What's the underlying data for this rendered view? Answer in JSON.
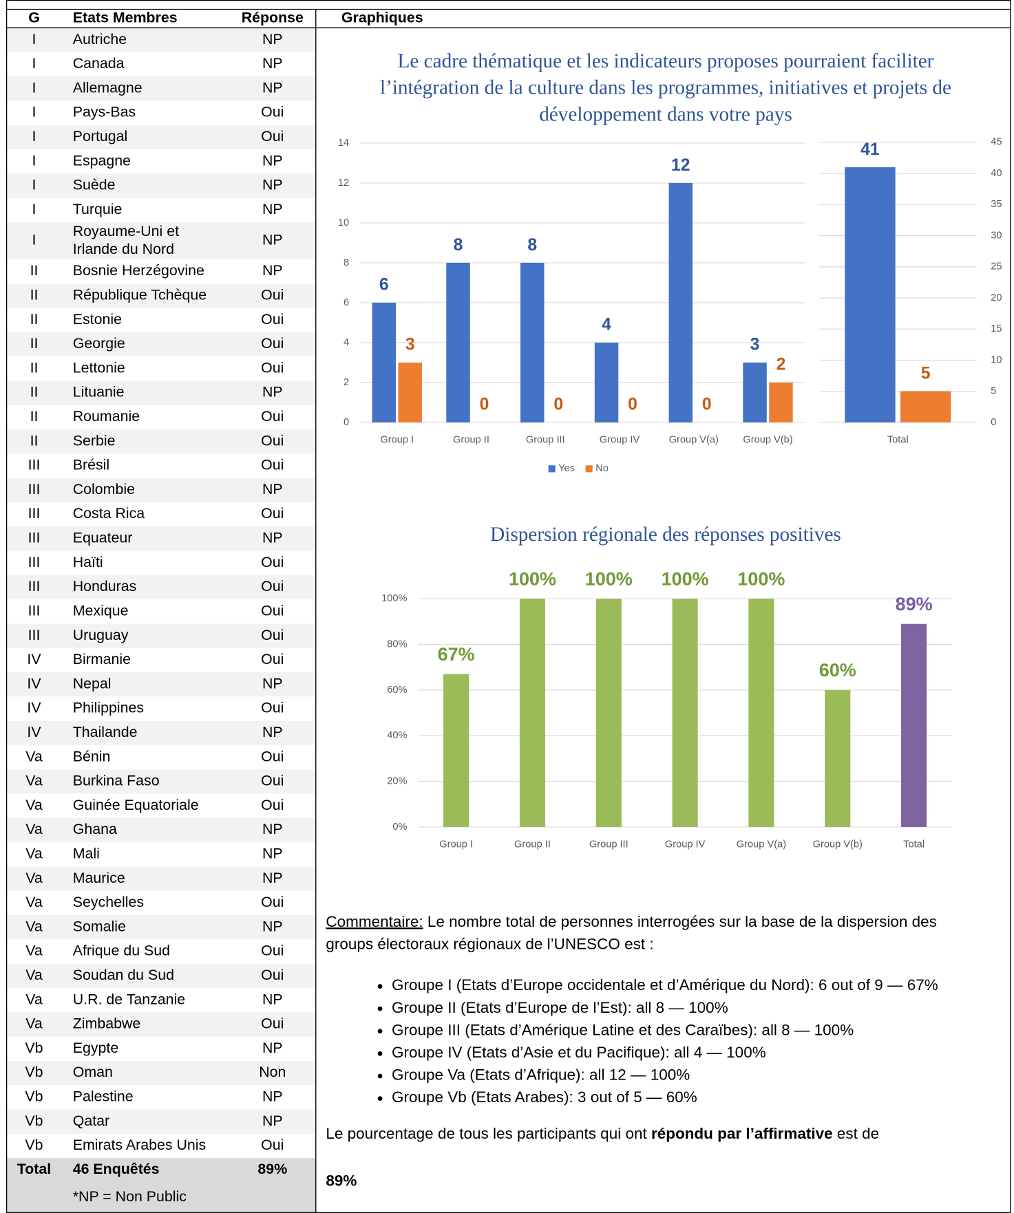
{
  "table": {
    "columns": [
      "G",
      "Etats Membres",
      "Réponse",
      "Graphiques"
    ],
    "rows": [
      [
        "I",
        "Autriche",
        "NP"
      ],
      [
        "I",
        "Canada",
        "NP"
      ],
      [
        "I",
        "Allemagne",
        "NP"
      ],
      [
        "I",
        "Pays-Bas",
        "Oui"
      ],
      [
        "I",
        "Portugal",
        "Oui"
      ],
      [
        "I",
        "Espagne",
        "NP"
      ],
      [
        "I",
        "Suède",
        "NP"
      ],
      [
        "I",
        "Turquie",
        "NP"
      ],
      [
        "I",
        [
          "Royaume-Uni et",
          "Irlande du Nord"
        ],
        "NP"
      ],
      [
        "II",
        "Bosnie Herzégovine",
        "NP"
      ],
      [
        "II",
        "République Tchèque",
        "Oui"
      ],
      [
        "II",
        "Estonie",
        "Oui"
      ],
      [
        "II",
        "Georgie",
        "Oui"
      ],
      [
        "II",
        "Lettonie",
        "Oui"
      ],
      [
        "II",
        "Lituanie",
        "NP"
      ],
      [
        "II",
        "Roumanie",
        "Oui"
      ],
      [
        "II",
        "Serbie",
        "Oui"
      ],
      [
        "III",
        "Brésil",
        "Oui"
      ],
      [
        "III",
        "Colombie",
        "NP"
      ],
      [
        "III",
        "Costa Rica",
        "Oui"
      ],
      [
        "III",
        "Equateur",
        "NP"
      ],
      [
        "III",
        "Haïti",
        "Oui"
      ],
      [
        "III",
        "Honduras",
        "Oui"
      ],
      [
        "III",
        "Mexique",
        "Oui"
      ],
      [
        "III",
        "Uruguay",
        "Oui"
      ],
      [
        "IV",
        "Birmanie",
        "Oui"
      ],
      [
        "IV",
        "Nepal",
        "NP"
      ],
      [
        "IV",
        "Philippines",
        "Oui"
      ],
      [
        "IV",
        "Thailande",
        "NP"
      ],
      [
        "Va",
        "Bénin",
        "Oui"
      ],
      [
        "Va",
        "Burkina Faso",
        "Oui"
      ],
      [
        "Va",
        "Guinée Equatoriale",
        "Oui"
      ],
      [
        "Va",
        "Ghana",
        "NP"
      ],
      [
        "Va",
        "Mali",
        "NP"
      ],
      [
        "Va",
        "Maurice",
        "NP"
      ],
      [
        "Va",
        "Seychelles",
        "Oui"
      ],
      [
        "Va",
        "Somalie",
        "NP"
      ],
      [
        "Va",
        "Afrique du Sud",
        "Oui"
      ],
      [
        "Va",
        "Soudan du Sud",
        "Oui"
      ],
      [
        "Va",
        "U.R. de Tanzanie",
        "NP"
      ],
      [
        "Va",
        "Zimbabwe",
        "Oui"
      ],
      [
        "Vb",
        "Egypte",
        "NP"
      ],
      [
        "Vb",
        "Oman",
        "Non"
      ],
      [
        "Vb",
        "Palestine",
        "NP"
      ],
      [
        "Vb",
        "Qatar",
        "NP"
      ],
      [
        "Vb",
        "Emirats Arabes Unis",
        "Oui"
      ]
    ],
    "total": [
      "Total",
      "46 Enquêtés",
      "89%"
    ],
    "note": "*NP = Non Public"
  },
  "chart_data": [
    {
      "type": "bar",
      "title": [
        "Le cadre thématique et les indicateurs proposes pourraient faciliter",
        "l’intégration de la culture dans les programmes, initiatives et projets de",
        "développement dans votre pays"
      ],
      "categories": [
        "Group I",
        "Group II",
        "Group III",
        "Group IV",
        "Group V(a)",
        "Group V(b)"
      ],
      "series": [
        {
          "name": "Yes",
          "color": "#4472c4",
          "label_color": "#2f5597",
          "values": [
            6,
            8,
            8,
            4,
            12,
            3
          ]
        },
        {
          "name": "No",
          "color": "#ed7d31",
          "label_color": "#c55a11",
          "values": [
            3,
            0,
            0,
            0,
            0,
            2
          ]
        }
      ],
      "ylim": [
        0,
        14
      ],
      "yticks": [
        0,
        2,
        4,
        6,
        8,
        10,
        12,
        14
      ],
      "grid": true,
      "legend": "bottom"
    },
    {
      "type": "bar",
      "categories": [
        "Total"
      ],
      "series": [
        {
          "color": "#4472c4",
          "label_color": "#2f5597",
          "values": [
            41
          ]
        },
        {
          "color": "#ed7d31",
          "label_color": "#c55a11",
          "values": [
            5
          ]
        }
      ],
      "ylim": [
        0,
        45
      ],
      "yticks": [
        0,
        5,
        10,
        15,
        20,
        25,
        30,
        35,
        40,
        45
      ],
      "grid": true,
      "y_axis_side": "right"
    },
    {
      "type": "bar",
      "title": [
        "Dispersion régionale des réponses positives"
      ],
      "categories": [
        "Group I",
        "Group II",
        "Group III",
        "Group IV",
        "Group V(a)",
        "Group V(b)",
        "Total"
      ],
      "values": [
        67,
        100,
        100,
        100,
        100,
        60,
        89
      ],
      "value_labels": [
        "67%",
        "100%",
        "100%",
        "100%",
        "100%",
        "60%",
        "89%"
      ],
      "colors": [
        "#9bbb59",
        "#9bbb59",
        "#9bbb59",
        "#9bbb59",
        "#9bbb59",
        "#9bbb59",
        "#8064a2"
      ],
      "label_colors": [
        "#6f9a35",
        "#6f9a35",
        "#6f9a35",
        "#6f9a35",
        "#6f9a35",
        "#6f9a35",
        "#7a5ca6"
      ],
      "ylim": [
        0,
        100
      ],
      "yticks": [
        {
          "value": 0,
          "label": "0%"
        },
        {
          "value": 20,
          "label": "20%"
        },
        {
          "value": 40,
          "label": "40%"
        },
        {
          "value": 60,
          "label": "60%"
        },
        {
          "value": 80,
          "label": "80%"
        },
        {
          "value": 100,
          "label": "100%"
        }
      ],
      "grid": true
    }
  ],
  "commentary": {
    "label": "Commentaire:",
    "intro": "Le nombre total de personnes interrogées sur la base de la dispersion des groups électoraux régionaux de l’UNESCO est :",
    "bullets": [
      "Groupe I (Etats d’Europe occidentale et d’Amérique du Nord): 6 out of 9 — 67%",
      "Groupe II (Etats d’Europe de l’Est): all 8 — 100%",
      "Groupe III (Etats d’Amérique Latine et des Caraïbes): all 8 — 100%",
      "Groupe IV (Etats d’Asie et du Pacifique): all 4 — 100%",
      "Groupe Va (Etats d’Afrique): all 12 — 100%",
      "Groupe Vb (Etats Arabes): 3 out of 5 — 60%"
    ],
    "closing_before": "Le pourcentage de tous les participants qui ont",
    "closing_bold": "répondu par l’affirmative",
    "closing_after": "est de",
    "result": "89%"
  }
}
